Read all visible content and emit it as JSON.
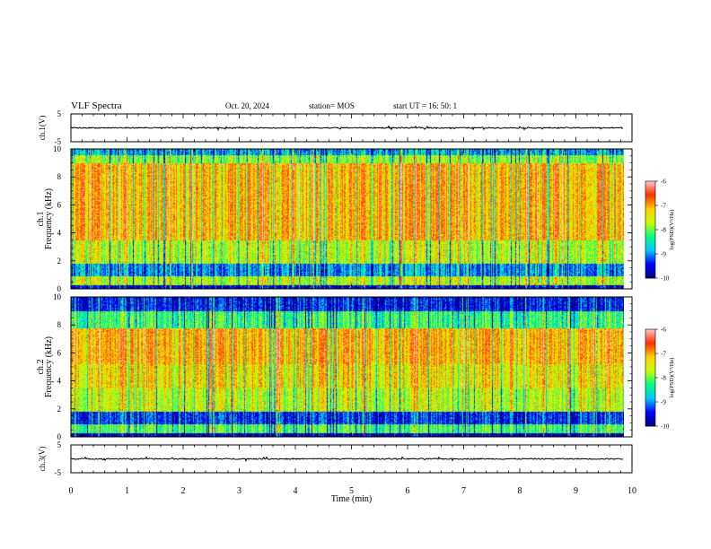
{
  "header": {
    "title": "VLF Spectra",
    "date": "Oct. 20, 2024",
    "station": "station= MOS",
    "start_ut": "start  UT =   16: 50: 1"
  },
  "chart_data": [
    {
      "type": "line",
      "name": "ch1-waveform",
      "ylabel": "ch.1(V)",
      "ylim": [
        -5,
        5
      ],
      "yticks": [
        "5",
        "-5"
      ],
      "xlim": [
        0,
        10
      ],
      "signal_level": 0,
      "data_end": 9.85
    },
    {
      "type": "heatmap",
      "name": "ch1-spectrogram",
      "ylabel_line1": "ch.1",
      "ylabel_line2": "Frequency (kHz)",
      "ylim": [
        0,
        10
      ],
      "yticks": [
        "0",
        "2",
        "4",
        "6",
        "8",
        "10"
      ],
      "xlim": [
        0,
        10
      ],
      "data_end": 9.85,
      "colorbar": {
        "min": -10,
        "max": -6,
        "ticks": [
          "-6",
          "-7",
          "-8",
          "-9",
          "-10"
        ],
        "label": "log(PSD)(V²/Hz)"
      },
      "bands": [
        {
          "from": 0.0,
          "to": 0.3,
          "level": -9.6
        },
        {
          "from": 0.3,
          "to": 0.9,
          "level": -7.6
        },
        {
          "from": 0.9,
          "to": 1.8,
          "level": -8.9
        },
        {
          "from": 1.8,
          "to": 3.5,
          "level": -7.6
        },
        {
          "from": 3.5,
          "to": 9.0,
          "level": -7.0
        },
        {
          "from": 9.0,
          "to": 9.6,
          "level": -7.8
        },
        {
          "from": 9.6,
          "to": 10.0,
          "level": -8.8
        }
      ]
    },
    {
      "type": "heatmap",
      "name": "ch2-spectrogram",
      "ylabel_line1": "ch.2",
      "ylabel_line2": "Frequency (kHz)",
      "ylim": [
        0,
        10
      ],
      "yticks": [
        "0",
        "2",
        "4",
        "6",
        "8",
        "10"
      ],
      "xlim": [
        0,
        10
      ],
      "data_end": 9.85,
      "colorbar": {
        "min": -10,
        "max": -6,
        "ticks": [
          "-6",
          "-7",
          "-8",
          "-9",
          "-10"
        ],
        "label": "log(PSD)(V²/Hz)"
      },
      "bands": [
        {
          "from": 0.0,
          "to": 0.3,
          "level": -9.8
        },
        {
          "from": 0.3,
          "to": 0.9,
          "level": -8.1
        },
        {
          "from": 0.9,
          "to": 1.8,
          "level": -9.3
        },
        {
          "from": 1.8,
          "to": 3.5,
          "level": -7.6
        },
        {
          "from": 3.5,
          "to": 5.2,
          "level": -7.3
        },
        {
          "from": 5.2,
          "to": 7.8,
          "level": -7.0
        },
        {
          "from": 7.8,
          "to": 9.0,
          "level": -8.2
        },
        {
          "from": 9.0,
          "to": 10.0,
          "level": -9.4
        }
      ]
    },
    {
      "type": "line",
      "name": "ch3-waveform",
      "ylabel": "ch.3(V)",
      "ylim": [
        -5,
        5
      ],
      "yticks": [
        "5",
        "-5"
      ],
      "xlim": [
        0,
        10
      ],
      "signal_level": 0,
      "data_end": 9.85
    }
  ],
  "x_axis": {
    "label": "Time  (min)",
    "range": [
      0,
      10
    ],
    "ticks": [
      "0",
      "1",
      "2",
      "3",
      "4",
      "5",
      "6",
      "7",
      "8",
      "9",
      "10"
    ]
  },
  "colors": {
    "colormap": [
      "#000080",
      "#0000ff",
      "#00c8ff",
      "#00ff80",
      "#c8ff00",
      "#ffd000",
      "#ff3000",
      "#ffc8c8"
    ]
  }
}
